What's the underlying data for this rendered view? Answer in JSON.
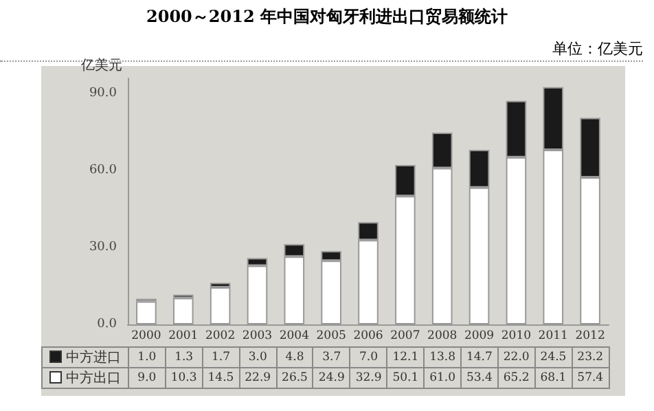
{
  "chart_data": {
    "type": "bar",
    "title": "2000～2012 年中国对匈牙利进出口贸易额统计",
    "ylabel": "亿美元",
    "annotations": [
      "单位：亿美元"
    ],
    "categories": [
      "2000",
      "2001",
      "2002",
      "2003",
      "2004",
      "2005",
      "2006",
      "2007",
      "2008",
      "2009",
      "2010",
      "2011",
      "2012"
    ],
    "stacked": true,
    "ylim": [
      0,
      96
    ],
    "yticks": [
      {
        "value": 0,
        "label": "0.0"
      },
      {
        "value": 30,
        "label": "30.0"
      },
      {
        "value": 60,
        "label": "60.0"
      },
      {
        "value": 90,
        "label": "90.0"
      }
    ],
    "series": [
      {
        "name": "中方出口",
        "color": "#ffffff",
        "values": [
          9.0,
          10.3,
          14.5,
          22.9,
          26.5,
          24.9,
          32.9,
          50.1,
          61.0,
          53.4,
          65.2,
          68.1,
          57.4
        ],
        "value_labels": [
          "9.0",
          "10.3",
          "14.5",
          "22.9",
          "26.5",
          "24.9",
          "32.9",
          "50.1",
          "61.0",
          "53.4",
          "65.2",
          "68.1",
          "57.4"
        ]
      },
      {
        "name": "中方进口",
        "color": "#1a1a1a",
        "values": [
          1.0,
          1.3,
          1.7,
          3.0,
          4.8,
          3.7,
          7.0,
          12.1,
          13.8,
          14.7,
          22.0,
          24.5,
          23.2
        ],
        "value_labels": [
          "1.0",
          "1.3",
          "1.7",
          "3.0",
          "4.8",
          "3.7",
          "7.0",
          "12.1",
          "13.8",
          "14.7",
          "22.0",
          "24.5",
          "23.2"
        ]
      }
    ],
    "legend": "bottom",
    "grid": false
  }
}
